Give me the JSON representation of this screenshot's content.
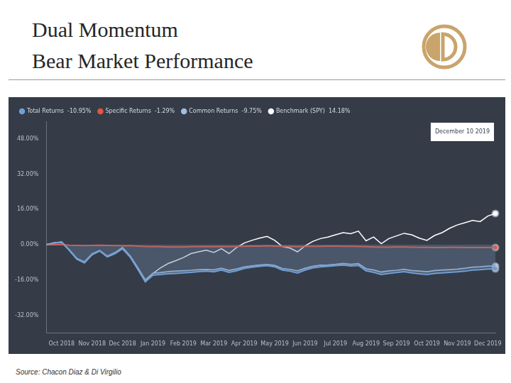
{
  "header": {
    "title": [
      "Dual Momentum",
      "Bear Market Performance"
    ]
  },
  "source": "Source: Chacon Diaz & Di Virgilio",
  "chart_data": {
    "type": "line",
    "annotation": "December 10 2019",
    "legend": "top-left",
    "grid": false,
    "categories": [
      null,
      null,
      "Oct 2018",
      null,
      null,
      null,
      "Nov 2018",
      null,
      null,
      null,
      "Dec 2018",
      null,
      null,
      null,
      "Jan 2019",
      null,
      null,
      null,
      "Feb 2019",
      null,
      null,
      null,
      "Mar 2019",
      null,
      null,
      null,
      "Apr 2019",
      null,
      null,
      null,
      "May 2019",
      null,
      null,
      null,
      "Jun 2019",
      null,
      null,
      null,
      "Jul 2019",
      null,
      null,
      null,
      "Aug 2019",
      null,
      null,
      null,
      "Sep 2019",
      null,
      null,
      null,
      "Oct 2019",
      null,
      null,
      null,
      "Nov 2019",
      null,
      null,
      null,
      "Dec 2019",
      null
    ],
    "ylim": [
      -40,
      56
    ],
    "yticks": [
      {
        "value": -32,
        "label": "-32.00%"
      },
      {
        "value": -16,
        "label": "-16.00%"
      },
      {
        "value": 0,
        "label": "0.00%"
      },
      {
        "value": 16,
        "label": "16.00%"
      },
      {
        "value": 32,
        "label": "32.00%"
      },
      {
        "value": 48,
        "label": "48.00%"
      }
    ],
    "series": [
      {
        "name": "Total Returns",
        "color": "#6f9fd6",
        "end_return": {
          "value": -10.95,
          "label": "-10.95%"
        },
        "values": [
          0,
          0.8,
          1.2,
          -2.5,
          -6.5,
          -8.2,
          -4.5,
          -2.8,
          -5.5,
          -4.0,
          -1.8,
          -5.5,
          -11.0,
          -16.8,
          -13.8,
          -13.5,
          -13.2,
          -13.0,
          -12.8,
          -12.5,
          -12.2,
          -12.0,
          -12.3,
          -11.5,
          -12.5,
          -11.8,
          -10.8,
          -10.2,
          -9.8,
          -9.5,
          -10.0,
          -11.5,
          -12.0,
          -12.8,
          -11.5,
          -10.5,
          -10.0,
          -9.8,
          -9.5,
          -9.2,
          -9.6,
          -9.4,
          -11.8,
          -12.5,
          -13.5,
          -13.0,
          -12.6,
          -12.2,
          -12.8,
          -13.2,
          -13.5,
          -13.0,
          -12.8,
          -12.5,
          -12.3,
          -12.0,
          -11.5,
          -11.3,
          -11.0,
          -10.95
        ]
      },
      {
        "name": "Specific Returns",
        "color": "#e8553e",
        "end_return": {
          "value": -1.29,
          "label": "-1.29%"
        },
        "values": [
          0,
          0,
          0.1,
          -0.2,
          -0.3,
          -0.4,
          -0.3,
          -0.2,
          -0.3,
          -0.4,
          -0.5,
          -0.4,
          -0.6,
          -0.8,
          -0.9,
          -0.9,
          -1.0,
          -1.0,
          -1.0,
          -0.9,
          -0.9,
          -0.8,
          -0.9,
          -0.8,
          -0.9,
          -0.8,
          -0.7,
          -0.6,
          -0.6,
          -0.5,
          -0.6,
          -0.7,
          -0.8,
          -0.9,
          -0.8,
          -0.7,
          -0.7,
          -0.6,
          -0.6,
          -0.7,
          -0.7,
          -0.8,
          -0.9,
          -1.0,
          -1.1,
          -1.1,
          -1.0,
          -1.0,
          -1.1,
          -1.2,
          -1.2,
          -1.3,
          -1.3,
          -1.2,
          -1.2,
          -1.3,
          -1.3,
          -1.3,
          -1.3,
          -1.29
        ]
      },
      {
        "name": "Common Returns",
        "color": "#9fbfe3",
        "end_return": {
          "value": -9.75,
          "label": "-9.75%"
        },
        "values": [
          0,
          0.8,
          1.1,
          -2.3,
          -6.2,
          -7.8,
          -4.2,
          -2.6,
          -5.2,
          -3.6,
          -1.3,
          -5.1,
          -10.4,
          -16.0,
          -12.9,
          -12.6,
          -12.2,
          -12.0,
          -11.8,
          -11.6,
          -11.3,
          -11.2,
          -11.4,
          -10.7,
          -11.6,
          -11.0,
          -10.1,
          -9.6,
          -9.2,
          -9.0,
          -9.4,
          -10.8,
          -11.2,
          -11.9,
          -10.7,
          -9.8,
          -9.3,
          -9.2,
          -8.9,
          -8.5,
          -8.9,
          -8.6,
          -10.9,
          -11.5,
          -12.4,
          -11.9,
          -11.6,
          -11.2,
          -11.7,
          -12.0,
          -12.3,
          -11.7,
          -11.5,
          -11.3,
          -11.1,
          -10.7,
          -10.2,
          -10.0,
          -9.7,
          -9.75
        ]
      },
      {
        "name": "Benchmark (SPY)",
        "color": "#ffffff",
        "end_return": {
          "value": 14.18,
          "label": "14.18%"
        },
        "values": [
          0,
          0.8,
          1.2,
          -2.5,
          -6.5,
          -8.2,
          -4.5,
          -2.8,
          -5.5,
          -4.0,
          -1.8,
          -5.5,
          -11.0,
          -16.8,
          -13.0,
          -10.5,
          -8.5,
          -7.2,
          -5.8,
          -4.0,
          -3.2,
          -2.5,
          -3.5,
          -1.8,
          -4.0,
          -1.2,
          0.8,
          2.0,
          3.0,
          3.8,
          2.0,
          -0.8,
          -1.5,
          -3.2,
          -0.5,
          1.5,
          2.8,
          3.5,
          4.5,
          5.5,
          5.0,
          6.2,
          1.8,
          3.5,
          0.5,
          2.8,
          4.0,
          5.2,
          4.5,
          3.0,
          2.0,
          4.2,
          5.5,
          7.5,
          9.0,
          10.0,
          11.0,
          10.5,
          13.0,
          14.18
        ]
      }
    ]
  }
}
